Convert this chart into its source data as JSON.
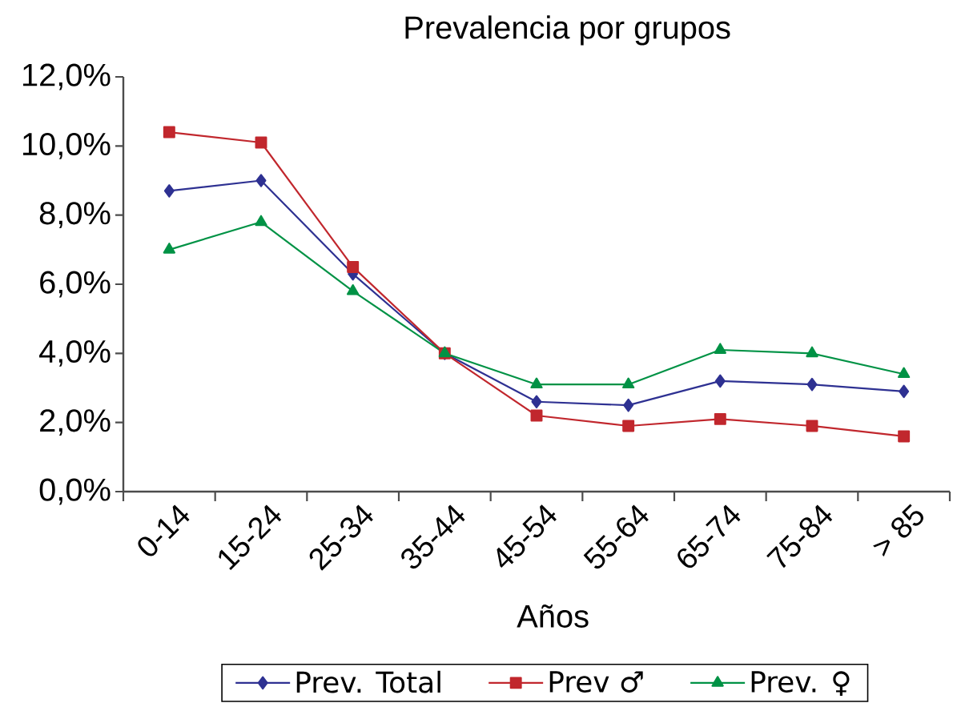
{
  "chart_data": {
    "type": "line",
    "title": "Prevalencia por grupos",
    "xlabel": "Años",
    "categories": [
      "0-14",
      "15-24",
      "25-34",
      "35-44",
      "45-54",
      "55-64",
      "65-74",
      "75-84",
      "> 85"
    ],
    "series": [
      {
        "name": "Prev. Total",
        "color": "#2e3192",
        "marker": "diamond",
        "values": [
          8.7,
          9.0,
          6.3,
          4.0,
          2.6,
          2.5,
          3.2,
          3.1,
          2.9
        ]
      },
      {
        "name": "Prev ♂",
        "color": "#c1272d",
        "marker": "square",
        "values": [
          10.4,
          10.1,
          6.5,
          4.0,
          2.2,
          1.9,
          2.1,
          1.9,
          1.6
        ]
      },
      {
        "name": "Prev. ♀",
        "color": "#009245",
        "marker": "triangle",
        "values": [
          7.0,
          7.8,
          5.8,
          4.0,
          3.1,
          3.1,
          4.1,
          4.0,
          3.4
        ]
      }
    ],
    "ylim": [
      0,
      12
    ],
    "yticks": [
      {
        "value": 0,
        "label": "0,0%"
      },
      {
        "value": 2,
        "label": "2,0%"
      },
      {
        "value": 4,
        "label": "4,0%"
      },
      {
        "value": 6,
        "label": "6,0%"
      },
      {
        "value": 8,
        "label": "8,0%"
      },
      {
        "value": 10,
        "label": "10,0%"
      },
      {
        "value": 12,
        "label": "12,0%"
      }
    ],
    "legend": "bottom",
    "line_style": "solid"
  }
}
